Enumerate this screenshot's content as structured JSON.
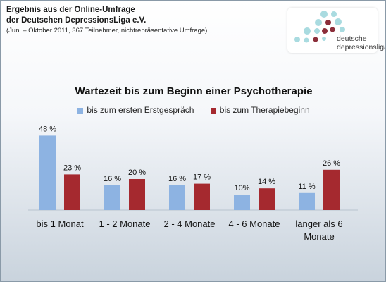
{
  "header": {
    "line1": "Ergebnis aus der Online-Umfrage",
    "line2": "der Deutschen DepressionsLiga e.V.",
    "line3": "(Juni – Oktober 2011, 367 Teilnehmer, nichtrepräsentative Umfrage)"
  },
  "logo": {
    "line1": "deutsche",
    "line2": "depressionsliga",
    "colors": {
      "light": "#a9dbe0",
      "dark": "#8b2e3a"
    }
  },
  "chart_data": {
    "type": "bar",
    "title": "Wartezeit bis zum Beginn einer Psychotherapie",
    "categories": [
      [
        "bis 1 Monat"
      ],
      [
        "1 - 2 Monate"
      ],
      [
        "2 - 4 Monate"
      ],
      [
        "4 - 6 Monate"
      ],
      [
        "länger als 6",
        "Monate"
      ]
    ],
    "series": [
      {
        "name": "bis zum ersten Erstgespräch",
        "color": "#8db3e2",
        "values": [
          48,
          16,
          16,
          10,
          11
        ],
        "labels": [
          "48 %",
          "16 %",
          "16 %",
          "10%",
          "11 %"
        ]
      },
      {
        "name": "bis zum Therapiebeginn",
        "color": "#a5292f",
        "values": [
          23,
          20,
          17,
          14,
          26
        ],
        "labels": [
          "23 %",
          "20 %",
          "17 %",
          "14 %",
          "26 %"
        ]
      }
    ],
    "ylim": [
      0,
      50
    ],
    "grid": false,
    "legend_position": "top"
  }
}
